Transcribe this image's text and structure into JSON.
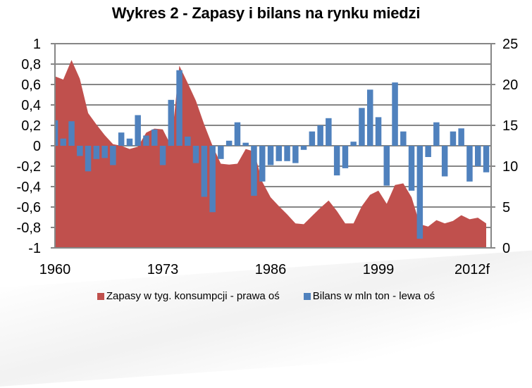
{
  "chart_data": {
    "type": "bar+area",
    "title": "Wykres 2 - Zapasy i bilans na rynku miedzi",
    "x": [
      1960,
      1961,
      1962,
      1963,
      1964,
      1965,
      1966,
      1967,
      1968,
      1969,
      1970,
      1971,
      1972,
      1973,
      1974,
      1975,
      1976,
      1977,
      1978,
      1979,
      1980,
      1981,
      1982,
      1983,
      1984,
      1985,
      1986,
      1987,
      1988,
      1989,
      1990,
      1991,
      1992,
      1993,
      1994,
      1995,
      1996,
      1997,
      1998,
      1999,
      2000,
      2001,
      2002,
      2003,
      2004,
      2005,
      2006,
      2007,
      2008,
      2009,
      2010,
      2011,
      2012
    ],
    "x_tick_labels": [
      "1960",
      "1973",
      "1986",
      "1999",
      "2012f"
    ],
    "x_tick_indices": [
      0,
      13,
      26,
      39,
      52
    ],
    "series": [
      {
        "name": "Zapasy w tyg. konsumpcji - prawa oś",
        "type": "area",
        "axis": "right",
        "color": "#C0504D",
        "values": [
          21.0,
          20.6,
          23.0,
          20.7,
          16.5,
          15.1,
          13.8,
          12.7,
          12.5,
          12.1,
          12.4,
          14.1,
          14.6,
          14.5,
          12.5,
          22.3,
          20.2,
          18.0,
          15.1,
          12.5,
          10.3,
          10.2,
          10.3,
          12.1,
          11.8,
          8.1,
          6.2,
          5.1,
          4.1,
          3.0,
          2.9,
          3.9,
          4.9,
          5.8,
          4.5,
          3.0,
          3.0,
          5.1,
          6.5,
          7.0,
          5.4,
          7.7,
          7.9,
          6.2,
          2.9,
          2.6,
          3.4,
          3.0,
          3.3,
          4.0,
          3.5,
          3.7,
          3.0
        ]
      },
      {
        "name": "Bilans w mln ton - lewa oś",
        "type": "bar",
        "axis": "left",
        "color": "#4F81BD",
        "values": [
          0.25,
          0.07,
          0.24,
          -0.1,
          -0.25,
          -0.13,
          -0.12,
          -0.19,
          0.13,
          0.07,
          0.3,
          0.1,
          0.16,
          -0.19,
          0.45,
          0.74,
          0.09,
          -0.17,
          -0.5,
          -0.65,
          -0.13,
          0.05,
          0.23,
          0.03,
          -0.49,
          -0.35,
          -0.19,
          -0.15,
          -0.15,
          -0.17,
          -0.04,
          0.14,
          0.2,
          0.27,
          -0.29,
          -0.22,
          0.04,
          0.37,
          0.55,
          0.28,
          -0.39,
          0.62,
          0.14,
          -0.44,
          -0.91,
          -0.11,
          0.23,
          -0.3,
          0.14,
          0.17,
          -0.35,
          -0.2,
          -0.26
        ]
      }
    ],
    "left_axis": {
      "min": -1,
      "max": 1,
      "step": 0.2,
      "tick_labels": [
        "1",
        "0,8",
        "0,6",
        "0,4",
        "0,2",
        "0",
        "-0,2",
        "-0,4",
        "-0,6",
        "-0,8",
        "-1"
      ]
    },
    "right_axis": {
      "min": 0,
      "max": 25,
      "step": 5,
      "tick_labels": [
        "25",
        "20",
        "15",
        "10",
        "5",
        "0"
      ]
    },
    "grid": true,
    "grid_color": "#868686",
    "legend_position": "bottom"
  },
  "legend": [
    {
      "label": "Zapasy w tyg. konsumpcji - prawa oś",
      "color": "#C0504D"
    },
    {
      "label": "Bilans w mln ton - lewa oś",
      "color": "#4F81BD"
    }
  ]
}
